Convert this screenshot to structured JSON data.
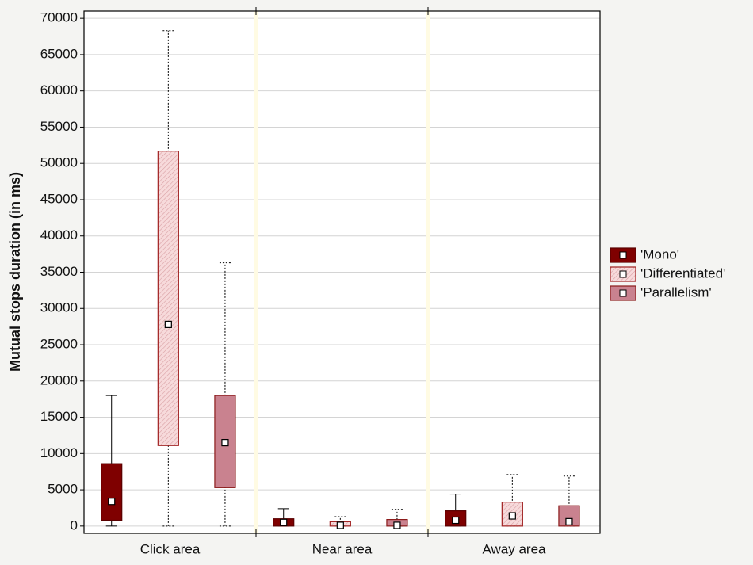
{
  "chart_data": {
    "type": "box",
    "y_label": "Mutual stops duration (in ms)",
    "categories": [
      "Click area",
      "Near area",
      "Away area"
    ],
    "ylim": [
      -1000,
      71000
    ],
    "yticks": [
      0,
      5000,
      10000,
      15000,
      20000,
      25000,
      30000,
      35000,
      40000,
      45000,
      50000,
      55000,
      60000,
      65000,
      70000
    ],
    "grid": true,
    "legend": "right",
    "series": [
      {
        "name": "'Mono'",
        "color": "#7f0000",
        "stroke": "#5a0000",
        "whisker": "solid",
        "hatched": false,
        "low": [
          0,
          0,
          0
        ],
        "q1": [
          800,
          0,
          0
        ],
        "mid": [
          3400,
          500,
          800
        ],
        "q3": [
          8600,
          1000,
          2100
        ],
        "high": [
          18000,
          2400,
          4400
        ]
      },
      {
        "name": "'Differentiated'",
        "color": "#f7dadb",
        "stroke": "#a02020",
        "whisker": "dotted",
        "hatched": true,
        "low": [
          0,
          0,
          0
        ],
        "q1": [
          11100,
          0,
          0
        ],
        "mid": [
          27800,
          100,
          1400
        ],
        "q3": [
          51700,
          600,
          3300
        ],
        "high": [
          68300,
          1300,
          7100
        ]
      },
      {
        "name": "'Parallelism'",
        "color": "#c9828f",
        "stroke": "#8b1a1a",
        "whisker": "dotted",
        "hatched": false,
        "low": [
          0,
          0,
          0
        ],
        "q1": [
          5300,
          0,
          0
        ],
        "mid": [
          11500,
          100,
          600
        ],
        "q3": [
          18000,
          900,
          2800
        ],
        "high": [
          36300,
          2300,
          6900
        ]
      }
    ]
  }
}
